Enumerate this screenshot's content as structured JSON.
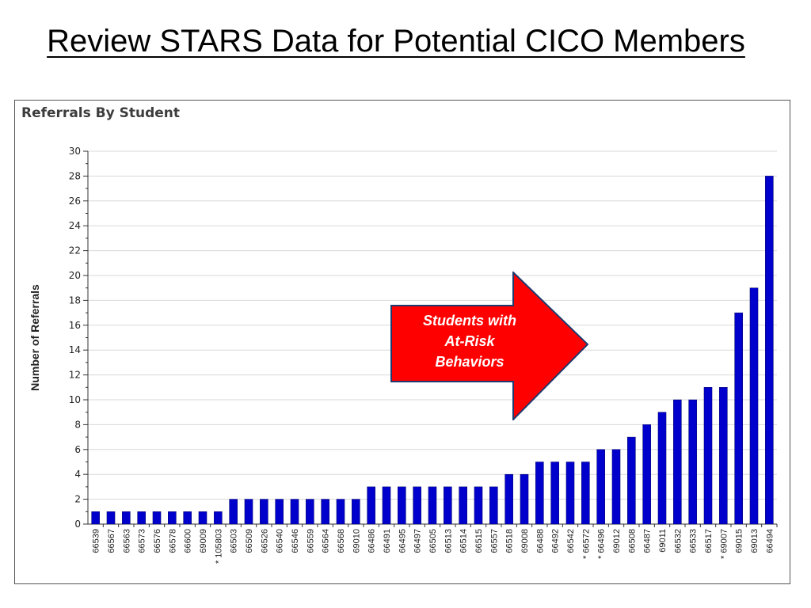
{
  "slide": {
    "title": "Review STARS Data for Potential CICO Members"
  },
  "callout": {
    "text": "Students with\nAt-Risk\nBehaviors",
    "fill": "#ff0000"
  },
  "chart_data": {
    "type": "bar",
    "title": "Referrals By Student",
    "ylabel": "Number of Referrals",
    "xlabel": "",
    "ylim": [
      0,
      30
    ],
    "yticks": [
      0,
      2,
      4,
      6,
      8,
      10,
      12,
      14,
      16,
      18,
      20,
      22,
      24,
      26,
      28,
      30
    ],
    "grid": true,
    "bar_color": "#0000cc",
    "categories": [
      "66539",
      "66567",
      "66563",
      "66573",
      "66576",
      "66578",
      "66600",
      "69009",
      "* 105803",
      "66503",
      "66509",
      "66526",
      "66540",
      "66546",
      "66559",
      "66564",
      "66568",
      "69010",
      "66486",
      "66491",
      "66495",
      "66497",
      "66505",
      "66513",
      "66514",
      "66515",
      "66557",
      "66518",
      "69008",
      "66488",
      "66492",
      "66542",
      "* 66572",
      "* 66496",
      "69012",
      "66508",
      "66487",
      "69011",
      "66532",
      "66533",
      "66517",
      "* 69007",
      "69015",
      "69013",
      "66494"
    ],
    "values": [
      1,
      1,
      1,
      1,
      1,
      1,
      1,
      1,
      1,
      2,
      2,
      2,
      2,
      2,
      2,
      2,
      2,
      2,
      3,
      3,
      3,
      3,
      3,
      3,
      3,
      3,
      3,
      4,
      4,
      5,
      5,
      5,
      5,
      6,
      6,
      7,
      8,
      9,
      10,
      10,
      11,
      11,
      17,
      19,
      28
    ]
  }
}
